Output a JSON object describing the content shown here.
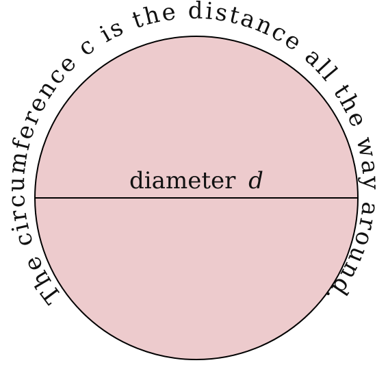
{
  "circle": {
    "fill_color": "#edcbcd",
    "stroke_color": "#000000"
  },
  "circumference_text": "The circumference c is the distance all the way around.",
  "diameter_label": {
    "word": "diameter",
    "variable": "d"
  }
}
